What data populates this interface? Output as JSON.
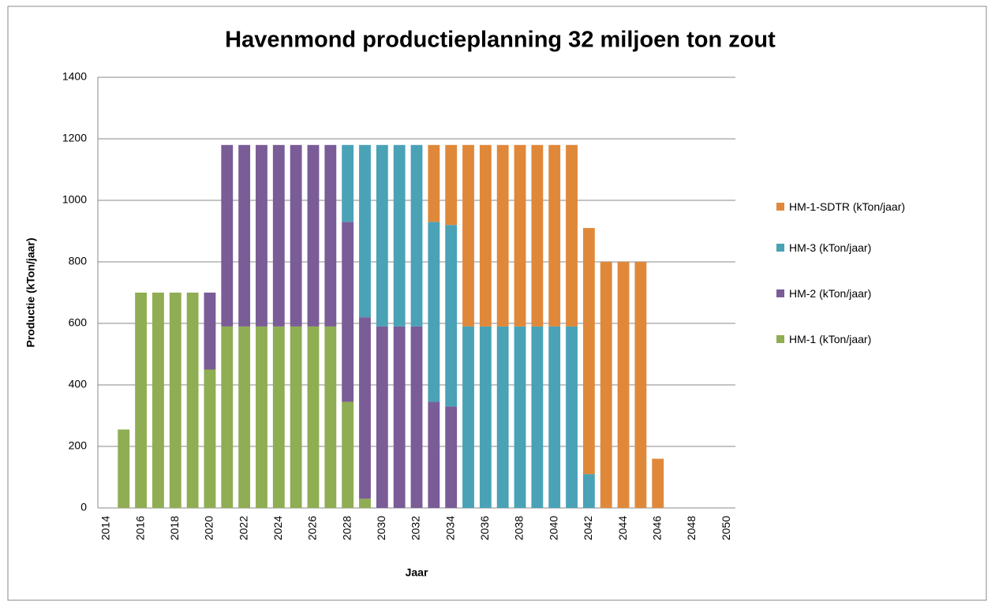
{
  "chart_data": {
    "type": "stacked_bar",
    "title": "Havenmond productieplanning 32 miljoen ton zout",
    "x_label": "Jaar",
    "y_label": "Productie (kTon/jaar)",
    "categories": [
      "2014",
      null,
      "2016",
      null,
      "2018",
      null,
      "2020",
      null,
      "2022",
      null,
      "2024",
      null,
      "2026",
      null,
      "2028",
      null,
      "2030",
      null,
      "2032",
      null,
      "2034",
      null,
      "2036",
      null,
      "2038",
      null,
      "2040",
      null,
      "2042",
      null,
      "2044",
      null,
      "2046",
      null,
      "2048",
      null,
      "2050"
    ],
    "series": [
      {
        "name": "HM-1 (kTon/jaar)",
        "color": "#8fad52",
        "values": [
          0,
          255,
          700,
          700,
          700,
          700,
          450,
          590,
          590,
          590,
          590,
          590,
          590,
          590,
          345,
          30,
          0,
          0,
          0,
          0,
          0,
          0,
          0,
          0,
          0,
          0,
          0,
          0,
          0,
          0,
          0,
          0,
          0,
          0,
          0,
          0,
          0
        ]
      },
      {
        "name": "HM-2 (kTon/jaar)",
        "color": "#7a5c97",
        "values": [
          0,
          0,
          0,
          0,
          0,
          0,
          250,
          590,
          590,
          590,
          590,
          590,
          590,
          590,
          585,
          590,
          590,
          590,
          590,
          345,
          330,
          0,
          0,
          0,
          0,
          0,
          0,
          0,
          0,
          0,
          0,
          0,
          0,
          0,
          0,
          0,
          0
        ]
      },
      {
        "name": "HM-3 (kTon/jaar)",
        "color": "#4aa2b7",
        "values": [
          0,
          0,
          0,
          0,
          0,
          0,
          0,
          0,
          0,
          0,
          0,
          0,
          0,
          0,
          250,
          560,
          590,
          590,
          590,
          585,
          590,
          590,
          590,
          590,
          590,
          590,
          590,
          590,
          110,
          0,
          0,
          0,
          0,
          0,
          0,
          0,
          0
        ]
      },
      {
        "name": "HM-1-SDTR (kTon/jaar)",
        "color": "#e0883a",
        "values": [
          0,
          0,
          0,
          0,
          0,
          0,
          0,
          0,
          0,
          0,
          0,
          0,
          0,
          0,
          0,
          0,
          0,
          0,
          0,
          250,
          260,
          590,
          590,
          590,
          590,
          590,
          590,
          590,
          800,
          800,
          800,
          800,
          160,
          0,
          0,
          0,
          0
        ]
      }
    ],
    "ylim": [
      0,
      1400
    ],
    "yticks": [
      0,
      200,
      400,
      600,
      800,
      1000,
      1200,
      1400
    ],
    "grid": true,
    "legend": "right"
  }
}
